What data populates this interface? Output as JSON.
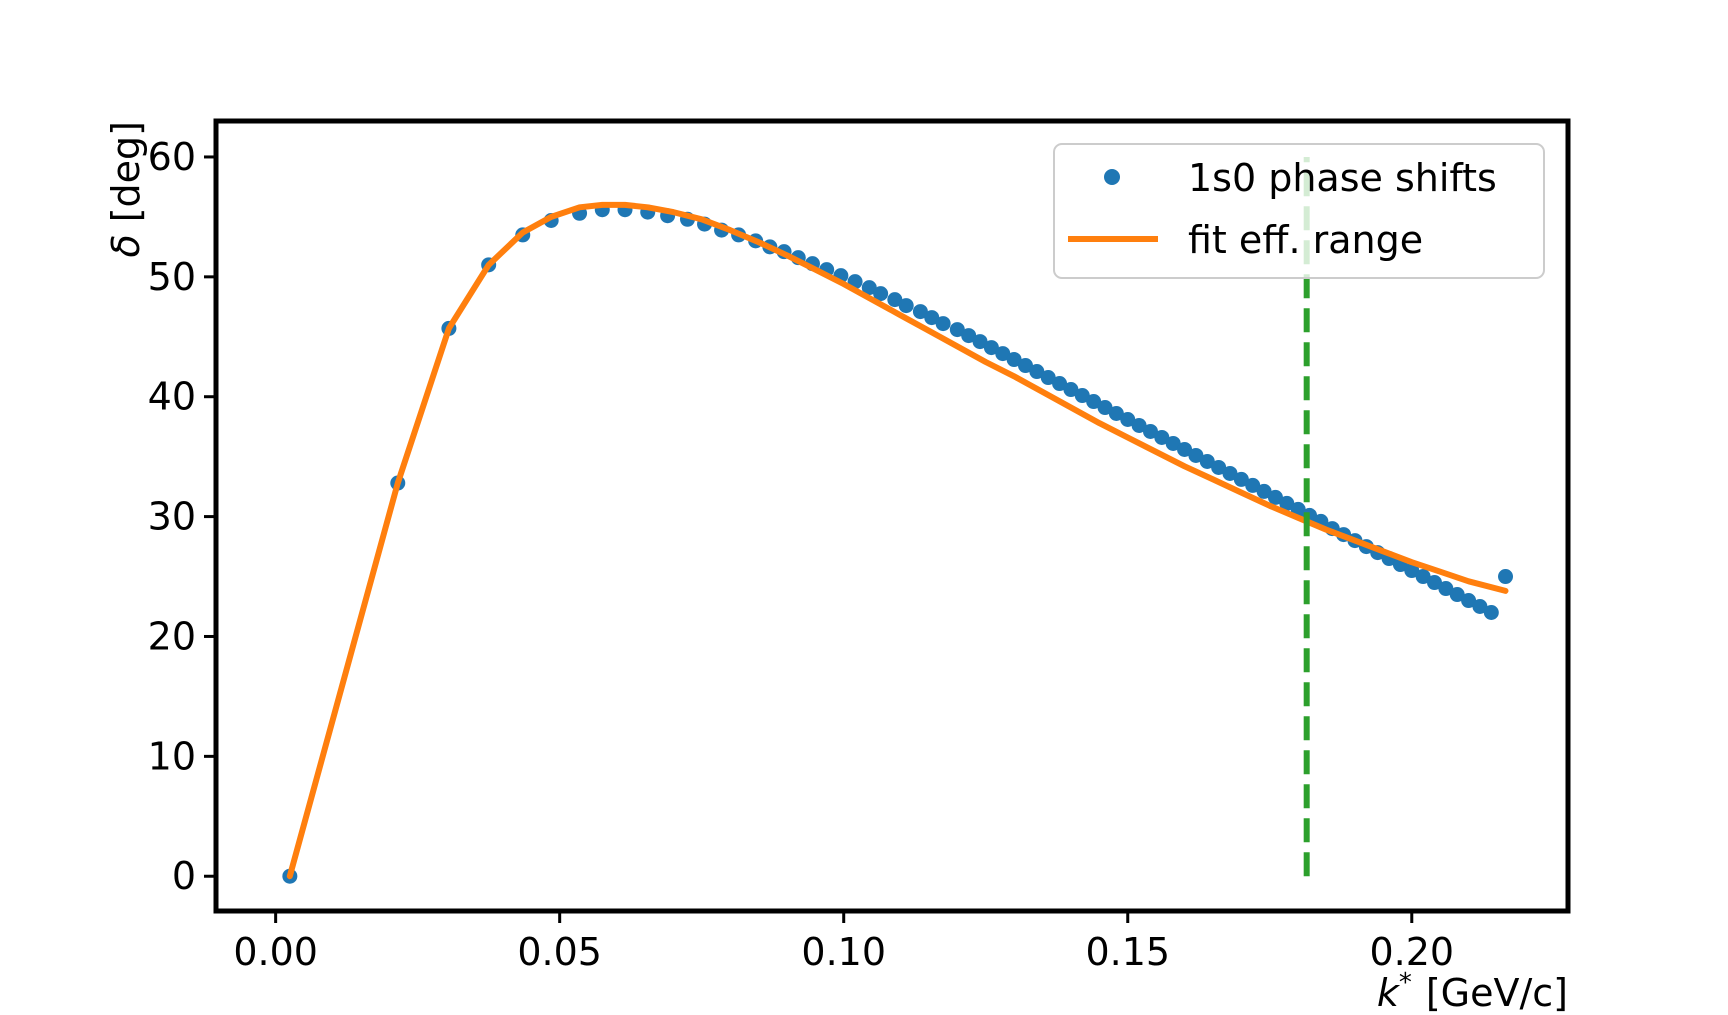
{
  "chart_data": {
    "type": "line",
    "xlabel": "k* [GeV/c]",
    "xlabel_main": "k",
    "xlabel_sup": "*",
    "xlabel_unit": "[GeV/c]",
    "ylabel": "δ [deg]",
    "ylabel_sym": "δ",
    "ylabel_unit": "[deg]",
    "xlim": [
      -0.0105,
      0.2275
    ],
    "ylim": [
      -2.9,
      63.0
    ],
    "x_ticks": [
      0.0,
      0.05,
      0.1,
      0.15,
      0.2
    ],
    "x_tick_labels": [
      "0.00",
      "0.05",
      "0.10",
      "0.15",
      "0.20"
    ],
    "y_ticks": [
      0,
      10,
      20,
      30,
      40,
      50,
      60
    ],
    "y_tick_labels": [
      "0",
      "10",
      "20",
      "30",
      "40",
      "50",
      "60"
    ],
    "grid": false,
    "legend_position": "top-right",
    "vline": {
      "x": 0.1815,
      "y_range": [
        0,
        60
      ],
      "color": "#2ca02c",
      "style": "dashed"
    },
    "series": [
      {
        "name": "1s0 phase shifts",
        "kind": "scatter",
        "color": "#1f77b4",
        "x": [
          0.0025,
          0.0215,
          0.0305,
          0.0375,
          0.0435,
          0.0485,
          0.0535,
          0.0575,
          0.0615,
          0.0655,
          0.069,
          0.0725,
          0.0755,
          0.0785,
          0.0815,
          0.0845,
          0.087,
          0.0895,
          0.092,
          0.0945,
          0.097,
          0.0995,
          0.102,
          0.1045,
          0.1065,
          0.109,
          0.111,
          0.1135,
          0.1155,
          0.1175,
          0.12,
          0.122,
          0.124,
          0.126,
          0.128,
          0.13,
          0.132,
          0.134,
          0.136,
          0.138,
          0.14,
          0.142,
          0.144,
          0.146,
          0.148,
          0.15,
          0.152,
          0.154,
          0.156,
          0.158,
          0.16,
          0.162,
          0.164,
          0.166,
          0.168,
          0.17,
          0.172,
          0.174,
          0.176,
          0.178,
          0.18,
          0.182,
          0.184,
          0.186,
          0.188,
          0.19,
          0.192,
          0.194,
          0.196,
          0.198,
          0.2,
          0.202,
          0.204,
          0.206,
          0.208,
          0.21,
          0.212,
          0.214,
          0.2165
        ],
        "y": [
          0.0,
          32.8,
          45.7,
          51.0,
          53.5,
          54.7,
          55.3,
          55.6,
          55.6,
          55.4,
          55.1,
          54.8,
          54.4,
          53.9,
          53.5,
          53.0,
          52.5,
          52.1,
          51.6,
          51.1,
          50.6,
          50.1,
          49.6,
          49.1,
          48.6,
          48.1,
          47.6,
          47.1,
          46.6,
          46.1,
          45.6,
          45.1,
          44.6,
          44.1,
          43.6,
          43.1,
          42.6,
          42.1,
          41.6,
          41.1,
          40.6,
          40.1,
          39.6,
          39.1,
          38.6,
          38.1,
          37.6,
          37.1,
          36.6,
          36.1,
          35.6,
          35.1,
          34.6,
          34.1,
          33.6,
          33.1,
          32.6,
          32.1,
          31.6,
          31.1,
          30.6,
          30.1,
          29.6,
          29.0,
          28.5,
          28.0,
          27.5,
          27.0,
          26.5,
          26.0,
          25.5,
          25.0,
          24.5,
          24.0,
          23.5,
          23.0,
          22.5,
          22.0,
          25.0
        ]
      },
      {
        "name": "fit eff. range",
        "kind": "line",
        "color": "#ff7f0e",
        "x": [
          0.0025,
          0.0215,
          0.0305,
          0.0375,
          0.0435,
          0.0485,
          0.0535,
          0.0575,
          0.0615,
          0.0655,
          0.07,
          0.075,
          0.08,
          0.085,
          0.09,
          0.095,
          0.1,
          0.105,
          0.11,
          0.115,
          0.12,
          0.125,
          0.13,
          0.135,
          0.14,
          0.145,
          0.15,
          0.155,
          0.16,
          0.165,
          0.17,
          0.175,
          0.18,
          0.185,
          0.19,
          0.195,
          0.2,
          0.205,
          0.21,
          0.2165
        ],
        "y": [
          0.0,
          32.8,
          45.7,
          51.0,
          53.7,
          55.0,
          55.8,
          56.0,
          56.0,
          55.8,
          55.4,
          54.8,
          53.9,
          52.9,
          51.8,
          50.6,
          49.4,
          48.1,
          46.8,
          45.5,
          44.2,
          42.9,
          41.7,
          40.4,
          39.1,
          37.8,
          36.6,
          35.4,
          34.2,
          33.1,
          32.0,
          30.9,
          29.9,
          28.9,
          28.0,
          27.1,
          26.2,
          25.4,
          24.6,
          23.8
        ]
      }
    ]
  }
}
